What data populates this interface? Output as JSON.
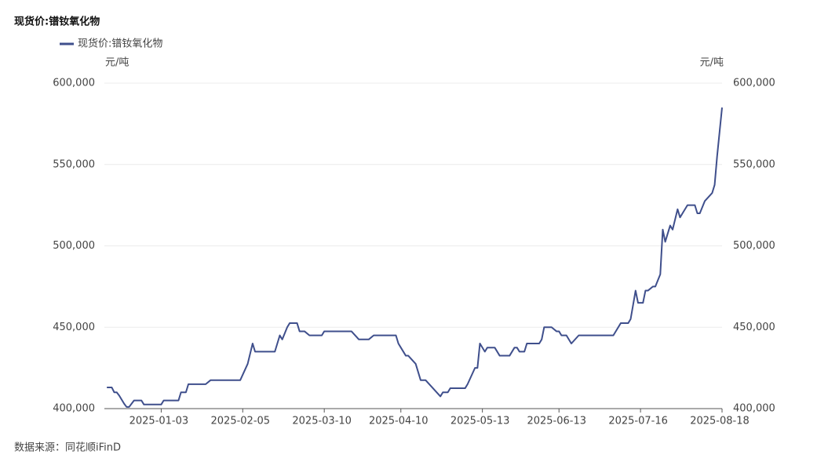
{
  "chart_data": {
    "type": "line",
    "title": "现货价:镨钕氧化物",
    "y_label": "元/吨",
    "y2_label": "元/吨",
    "source": "数据来源：同花顺iFinD",
    "legend_position": "top-left",
    "grid": true,
    "xlim": [
      "2024-12-11",
      "2025-08-18"
    ],
    "xticks": [
      "2025-01-03",
      "2025-02-05",
      "2025-03-10",
      "2025-04-10",
      "2025-05-13",
      "2025-06-13",
      "2025-07-16",
      "2025-08-18"
    ],
    "ylim": [
      400000,
      600000
    ],
    "yticks": [
      {
        "value": 400000,
        "label": "400,000"
      },
      {
        "value": 450000,
        "label": "450,000"
      },
      {
        "value": 500000,
        "label": "500,000"
      },
      {
        "value": 550000,
        "label": "550,000"
      },
      {
        "value": 600000,
        "label": "600,000"
      }
    ],
    "y2lim": [
      400000,
      600000
    ],
    "y2ticks": [
      {
        "value": 400000,
        "label": "400,000"
      },
      {
        "value": 450000,
        "label": "450,000"
      },
      {
        "value": 500000,
        "label": "500,000"
      },
      {
        "value": 550000,
        "label": "550,000"
      },
      {
        "value": 600000,
        "label": "600,000"
      }
    ],
    "x": [
      "2024-12-12",
      "2024-12-14",
      "2024-12-15",
      "2024-12-16",
      "2024-12-17",
      "2024-12-19",
      "2024-12-20",
      "2024-12-21",
      "2024-12-23",
      "2024-12-26",
      "2024-12-27",
      "2025-01-03",
      "2025-01-04",
      "2025-01-10",
      "2025-01-11",
      "2025-01-13",
      "2025-01-14",
      "2025-01-21",
      "2025-01-23",
      "2025-02-04",
      "2025-02-07",
      "2025-02-09",
      "2025-02-10",
      "2025-02-18",
      "2025-02-20",
      "2025-02-21",
      "2025-02-23",
      "2025-02-24",
      "2025-02-27",
      "2025-02-28",
      "2025-03-02",
      "2025-03-04",
      "2025-03-09",
      "2025-03-10",
      "2025-03-21",
      "2025-03-24",
      "2025-03-28",
      "2025-03-30",
      "2025-04-08",
      "2025-04-09",
      "2025-04-10",
      "2025-04-12",
      "2025-04-13",
      "2025-04-16",
      "2025-04-18",
      "2025-04-20",
      "2025-04-26",
      "2025-04-27",
      "2025-04-29",
      "2025-04-30",
      "2025-05-06",
      "2025-05-07",
      "2025-05-10",
      "2025-05-11",
      "2025-05-12",
      "2025-05-14",
      "2025-05-15",
      "2025-05-18",
      "2025-05-20",
      "2025-05-24",
      "2025-05-26",
      "2025-05-27",
      "2025-05-28",
      "2025-05-30",
      "2025-05-31",
      "2025-06-05",
      "2025-06-06",
      "2025-06-07",
      "2025-06-10",
      "2025-06-12",
      "2025-06-13",
      "2025-06-14",
      "2025-06-16",
      "2025-06-18",
      "2025-06-21",
      "2025-07-05",
      "2025-07-07",
      "2025-07-08",
      "2025-07-11",
      "2025-07-12",
      "2025-07-14",
      "2025-07-15",
      "2025-07-17",
      "2025-07-18",
      "2025-07-19",
      "2025-07-21",
      "2025-07-22",
      "2025-07-24",
      "2025-07-25",
      "2025-07-26",
      "2025-07-28",
      "2025-07-29",
      "2025-07-31",
      "2025-08-01",
      "2025-08-02",
      "2025-08-04",
      "2025-08-07",
      "2025-08-08",
      "2025-08-09",
      "2025-08-11",
      "2025-08-14",
      "2025-08-15",
      "2025-08-16",
      "2025-08-18"
    ],
    "series": [
      {
        "name": "现货价:镨钕氧化物",
        "color": "#3f4f8c",
        "values": [
          413000,
          413000,
          410000,
          410000,
          408000,
          403000,
          401000,
          401000,
          405000,
          405000,
          402500,
          402500,
          405000,
          405000,
          410000,
          410000,
          415000,
          415000,
          417500,
          417500,
          427500,
          440000,
          435000,
          435000,
          445000,
          442500,
          450000,
          452500,
          452500,
          447500,
          447500,
          445000,
          445000,
          447500,
          447500,
          442500,
          442500,
          445000,
          445000,
          440000,
          437500,
          432500,
          432500,
          427500,
          417500,
          417500,
          407500,
          410000,
          410000,
          412500,
          412500,
          415000,
          425000,
          425000,
          440000,
          435000,
          437500,
          437500,
          432500,
          432500,
          437500,
          437500,
          435000,
          435000,
          440000,
          440000,
          442500,
          450000,
          450000,
          447500,
          447500,
          445000,
          445000,
          440000,
          445000,
          445000,
          450000,
          452500,
          452500,
          455000,
          472500,
          465000,
          465000,
          472500,
          472500,
          475000,
          475000,
          482500,
          510000,
          502500,
          512500,
          510000,
          522500,
          517500,
          520000,
          525000,
          525000,
          520000,
          520000,
          527500,
          532500,
          537500,
          555000,
          585000
        ]
      }
    ]
  }
}
